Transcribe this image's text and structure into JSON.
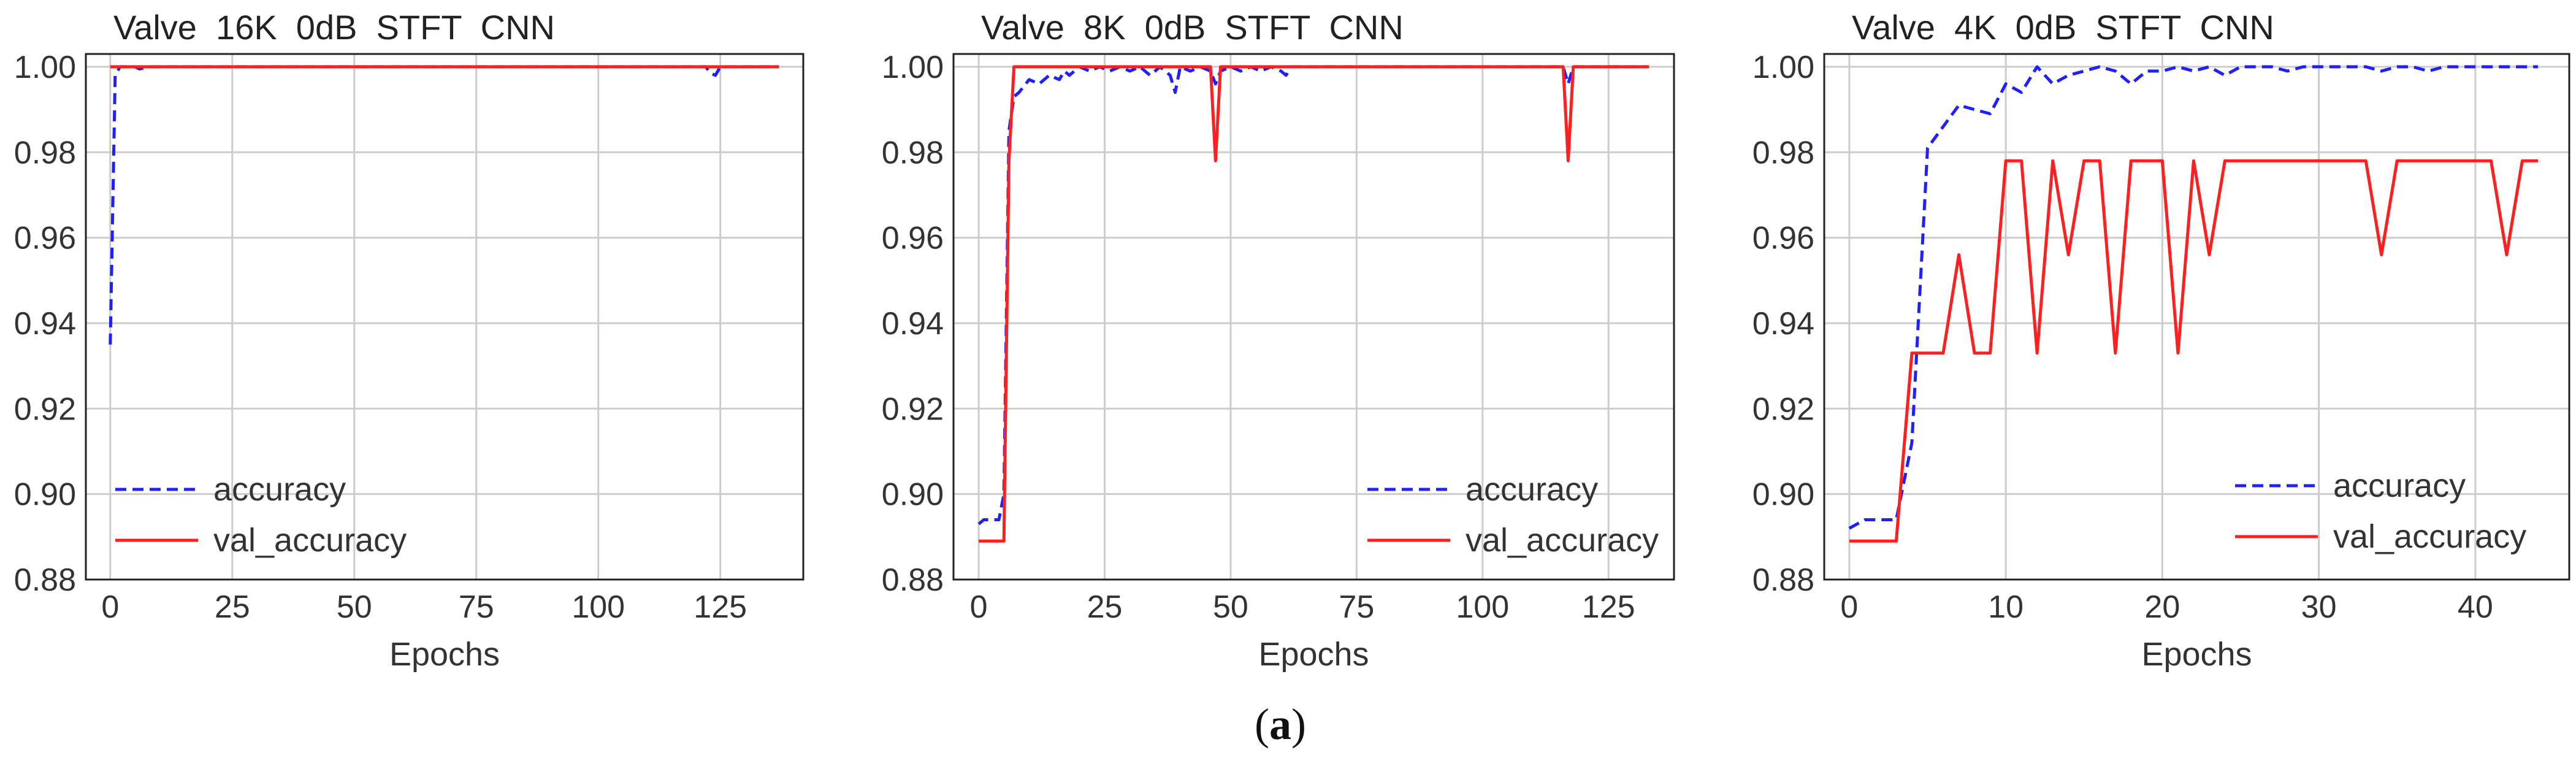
{
  "chart_data": [
    {
      "type": "line",
      "title": "Valve  16K  0dB  STFT  CNN",
      "xlabel": "Epochs",
      "ylabel": "",
      "xlim": [
        -5,
        142
      ],
      "ylim": [
        0.88,
        1.003
      ],
      "xticks": [
        0,
        25,
        50,
        75,
        100,
        125
      ],
      "yticks": [
        0.88,
        0.9,
        0.92,
        0.94,
        0.96,
        0.98,
        1.0
      ],
      "ytick_labels": [
        "0.88",
        "0.90",
        "0.92",
        "0.94",
        "0.96",
        "0.98",
        "1.00"
      ],
      "legend": "lower-left",
      "series": [
        {
          "name": "accuracy",
          "color": "#1f1fff",
          "style": "dashed",
          "x": [
            0,
            1,
            2,
            5,
            6,
            8,
            10,
            20,
            40,
            60,
            80,
            100,
            120,
            122,
            123,
            124,
            125,
            130,
            137
          ],
          "y": [
            0.935,
            0.998,
            1.0,
            1.0,
            0.9995,
            1.0,
            1.0,
            1.0,
            1.0,
            1.0,
            1.0,
            1.0,
            1.0,
            1.0,
            0.9985,
            0.998,
            1.0,
            1.0,
            1.0
          ]
        },
        {
          "name": "val_accuracy",
          "color": "#ff1f1f",
          "style": "solid",
          "x": [
            0,
            1,
            137
          ],
          "y": [
            1.0,
            1.0,
            1.0
          ]
        }
      ]
    },
    {
      "type": "line",
      "title": "Valve  8K  0dB  STFT  CNN",
      "xlabel": "Epochs",
      "ylabel": "",
      "xlim": [
        -5,
        138
      ],
      "ylim": [
        0.88,
        1.003
      ],
      "xticks": [
        0,
        25,
        50,
        75,
        100,
        125
      ],
      "yticks": [
        0.88,
        0.9,
        0.92,
        0.94,
        0.96,
        0.98,
        1.0
      ],
      "ytick_labels": [
        "0.88",
        "0.90",
        "0.92",
        "0.94",
        "0.96",
        "0.98",
        "1.00"
      ],
      "legend": "lower-right",
      "series": [
        {
          "name": "accuracy",
          "color": "#1f1fff",
          "style": "dashed",
          "x": [
            0,
            1,
            4,
            5,
            6,
            7,
            8,
            10,
            12,
            14,
            16,
            17,
            18,
            20,
            22,
            24,
            26,
            28,
            30,
            32,
            34,
            36,
            38,
            39,
            40,
            42,
            44,
            46,
            47,
            48,
            50,
            52,
            54,
            56,
            58,
            60,
            61,
            62,
            70,
            80,
            100,
            116,
            117,
            118,
            133
          ],
          "y": [
            0.893,
            0.894,
            0.894,
            0.9,
            0.985,
            0.993,
            0.994,
            0.997,
            0.996,
            0.998,
            0.997,
            0.999,
            0.998,
            1.0,
            0.999,
            1.0,
            0.999,
            1.0,
            0.999,
            1.0,
            0.998,
            1.0,
            0.998,
            0.994,
            1.0,
            0.999,
            1.0,
            0.999,
            0.996,
            0.999,
            1.0,
            0.999,
            1.0,
            0.999,
            1.0,
            0.999,
            0.998,
            1.0,
            1.0,
            1.0,
            1.0,
            1.0,
            0.996,
            1.0,
            1.0
          ]
        },
        {
          "name": "val_accuracy",
          "color": "#ff1f1f",
          "style": "solid",
          "x": [
            0,
            5,
            6,
            7,
            46,
            47,
            48,
            116,
            117,
            118,
            133
          ],
          "y": [
            0.889,
            0.889,
            0.978,
            1.0,
            1.0,
            0.978,
            1.0,
            1.0,
            0.978,
            1.0,
            1.0
          ]
        }
      ]
    },
    {
      "type": "line",
      "title": "Valve  4K  0dB  STFT  CNN",
      "xlabel": "Epochs",
      "ylabel": "",
      "xlim": [
        -1.6,
        46
      ],
      "ylim": [
        0.88,
        1.003
      ],
      "xticks": [
        0,
        10,
        20,
        30,
        40
      ],
      "yticks": [
        0.88,
        0.9,
        0.92,
        0.94,
        0.96,
        0.98,
        1.0
      ],
      "ytick_labels": [
        "0.88",
        "0.90",
        "0.92",
        "0.94",
        "0.96",
        "0.98",
        "1.00"
      ],
      "legend": "lower-right",
      "series": [
        {
          "name": "accuracy",
          "color": "#1f1fff",
          "style": "dashed",
          "x": [
            0,
            1,
            2,
            3,
            4,
            5,
            6,
            7,
            8,
            9,
            10,
            11,
            12,
            13,
            14,
            15,
            16,
            17,
            18,
            19,
            20,
            21,
            22,
            23,
            24,
            25,
            26,
            27,
            28,
            29,
            30,
            31,
            32,
            33,
            34,
            35,
            36,
            37,
            38,
            39,
            40,
            41,
            42,
            43,
            44
          ],
          "y": [
            0.892,
            0.894,
            0.894,
            0.894,
            0.912,
            0.981,
            0.986,
            0.991,
            0.99,
            0.989,
            0.996,
            0.994,
            1.0,
            0.996,
            0.998,
            0.999,
            1.0,
            0.999,
            0.996,
            0.999,
            0.999,
            1.0,
            0.999,
            1.0,
            0.998,
            1.0,
            1.0,
            1.0,
            0.999,
            1.0,
            1.0,
            1.0,
            1.0,
            1.0,
            0.999,
            1.0,
            1.0,
            0.999,
            1.0,
            1.0,
            1.0,
            1.0,
            1.0,
            1.0,
            1.0
          ]
        },
        {
          "name": "val_accuracy",
          "color": "#ff1f1f",
          "style": "solid",
          "x": [
            0,
            1,
            2,
            3,
            4,
            5,
            6,
            7,
            8,
            9,
            10,
            11,
            12,
            13,
            14,
            15,
            16,
            17,
            18,
            19,
            20,
            21,
            22,
            23,
            24,
            25,
            26,
            27,
            28,
            29,
            30,
            31,
            32,
            33,
            34,
            35,
            36,
            37,
            38,
            39,
            40,
            41,
            42,
            43,
            44
          ],
          "y": [
            0.889,
            0.889,
            0.889,
            0.889,
            0.933,
            0.933,
            0.933,
            0.956,
            0.933,
            0.933,
            0.978,
            0.978,
            0.933,
            0.978,
            0.956,
            0.978,
            0.978,
            0.933,
            0.978,
            0.978,
            0.978,
            0.933,
            0.978,
            0.956,
            0.978,
            0.978,
            0.978,
            0.978,
            0.978,
            0.978,
            0.978,
            0.978,
            0.978,
            0.978,
            0.956,
            0.978,
            0.978,
            0.978,
            0.978,
            0.978,
            0.978,
            0.978,
            0.956,
            0.978,
            0.978
          ]
        }
      ]
    }
  ],
  "caption": {
    "open": "(",
    "letter": "a",
    "close": ")"
  }
}
